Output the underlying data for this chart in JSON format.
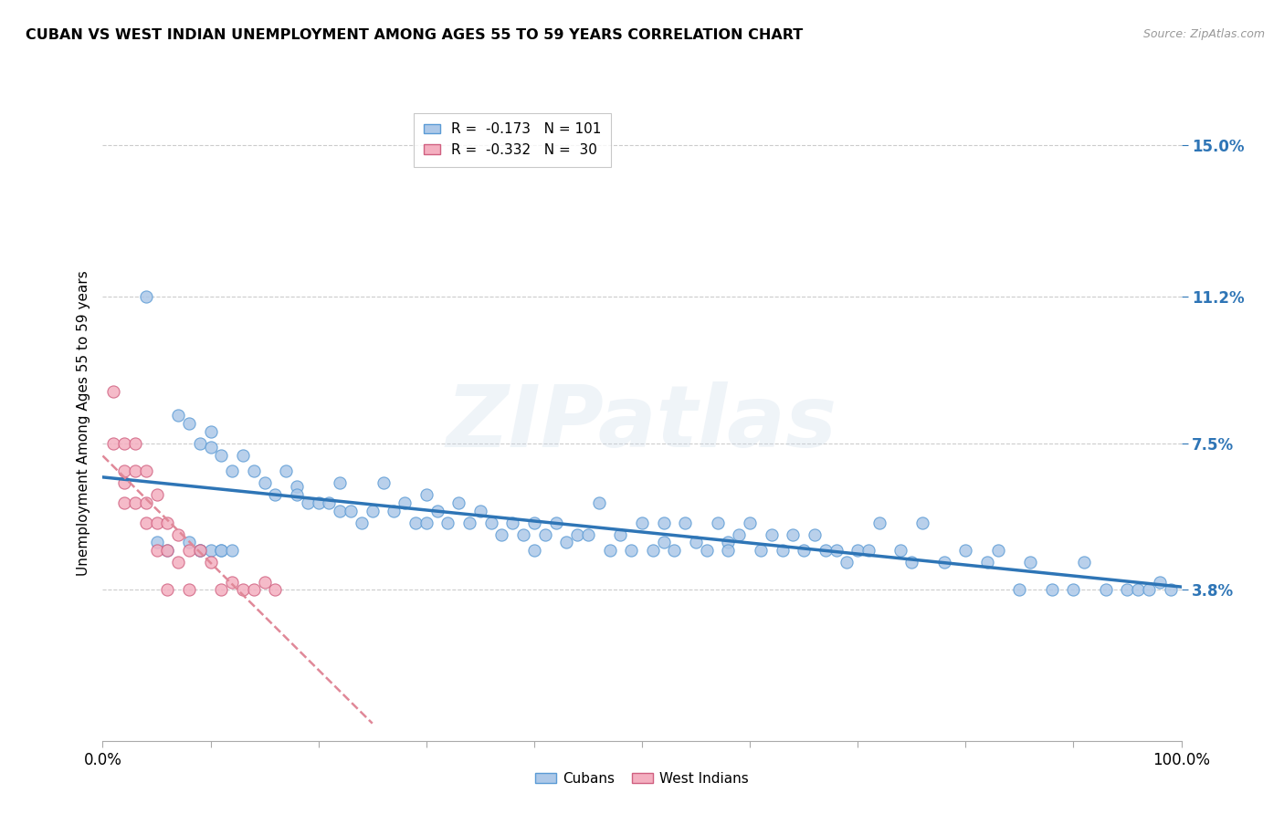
{
  "title": "CUBAN VS WEST INDIAN UNEMPLOYMENT AMONG AGES 55 TO 59 YEARS CORRELATION CHART",
  "source": "Source: ZipAtlas.com",
  "ylabel": "Unemployment Among Ages 55 to 59 years",
  "xlim": [
    0,
    1.0
  ],
  "ylim": [
    0,
    0.16
  ],
  "yticks": [
    0.038,
    0.075,
    0.112,
    0.15
  ],
  "ytick_labels": [
    "3.8%",
    "7.5%",
    "11.2%",
    "15.0%"
  ],
  "cuban_color": "#adc8e8",
  "cuban_edge_color": "#5b9bd5",
  "westindian_color": "#f4afc0",
  "westindian_edge_color": "#d06080",
  "cuban_line_color": "#2e75b6",
  "westindian_line_color": "#e08898",
  "cuban_R": -0.173,
  "cuban_N": 101,
  "westindian_R": -0.332,
  "westindian_N": 30,
  "watermark": "ZIPatlas",
  "cubans_x": [
    0.04,
    0.07,
    0.08,
    0.09,
    0.1,
    0.1,
    0.11,
    0.12,
    0.13,
    0.14,
    0.15,
    0.16,
    0.17,
    0.18,
    0.18,
    0.19,
    0.2,
    0.21,
    0.22,
    0.22,
    0.23,
    0.24,
    0.25,
    0.26,
    0.27,
    0.28,
    0.29,
    0.3,
    0.3,
    0.31,
    0.32,
    0.33,
    0.34,
    0.35,
    0.36,
    0.37,
    0.38,
    0.39,
    0.4,
    0.4,
    0.41,
    0.42,
    0.43,
    0.44,
    0.45,
    0.46,
    0.47,
    0.48,
    0.49,
    0.5,
    0.51,
    0.52,
    0.52,
    0.53,
    0.54,
    0.55,
    0.56,
    0.57,
    0.58,
    0.58,
    0.59,
    0.6,
    0.61,
    0.62,
    0.63,
    0.64,
    0.65,
    0.66,
    0.67,
    0.68,
    0.69,
    0.7,
    0.71,
    0.72,
    0.74,
    0.75,
    0.76,
    0.78,
    0.8,
    0.82,
    0.83,
    0.85,
    0.86,
    0.88,
    0.9,
    0.91,
    0.93,
    0.95,
    0.96,
    0.97,
    0.98,
    0.99,
    0.05,
    0.06,
    0.08,
    0.09,
    0.09,
    0.1,
    0.11,
    0.11,
    0.12
  ],
  "cubans_y": [
    0.112,
    0.082,
    0.08,
    0.075,
    0.078,
    0.074,
    0.072,
    0.068,
    0.072,
    0.068,
    0.065,
    0.062,
    0.068,
    0.064,
    0.062,
    0.06,
    0.06,
    0.06,
    0.058,
    0.065,
    0.058,
    0.055,
    0.058,
    0.065,
    0.058,
    0.06,
    0.055,
    0.055,
    0.062,
    0.058,
    0.055,
    0.06,
    0.055,
    0.058,
    0.055,
    0.052,
    0.055,
    0.052,
    0.055,
    0.048,
    0.052,
    0.055,
    0.05,
    0.052,
    0.052,
    0.06,
    0.048,
    0.052,
    0.048,
    0.055,
    0.048,
    0.055,
    0.05,
    0.048,
    0.055,
    0.05,
    0.048,
    0.055,
    0.05,
    0.048,
    0.052,
    0.055,
    0.048,
    0.052,
    0.048,
    0.052,
    0.048,
    0.052,
    0.048,
    0.048,
    0.045,
    0.048,
    0.048,
    0.055,
    0.048,
    0.045,
    0.055,
    0.045,
    0.048,
    0.045,
    0.048,
    0.038,
    0.045,
    0.038,
    0.038,
    0.045,
    0.038,
    0.038,
    0.038,
    0.038,
    0.04,
    0.038,
    0.05,
    0.048,
    0.05,
    0.048,
    0.048,
    0.048,
    0.048,
    0.048,
    0.048
  ],
  "westindians_x": [
    0.01,
    0.01,
    0.02,
    0.02,
    0.02,
    0.02,
    0.03,
    0.03,
    0.03,
    0.04,
    0.04,
    0.04,
    0.05,
    0.05,
    0.05,
    0.06,
    0.06,
    0.06,
    0.07,
    0.07,
    0.08,
    0.08,
    0.09,
    0.1,
    0.11,
    0.12,
    0.13,
    0.14,
    0.15,
    0.16
  ],
  "westindians_y": [
    0.088,
    0.075,
    0.075,
    0.068,
    0.065,
    0.06,
    0.075,
    0.068,
    0.06,
    0.068,
    0.06,
    0.055,
    0.062,
    0.055,
    0.048,
    0.055,
    0.048,
    0.038,
    0.052,
    0.045,
    0.048,
    0.038,
    0.048,
    0.045,
    0.038,
    0.04,
    0.038,
    0.038,
    0.04,
    0.038
  ]
}
